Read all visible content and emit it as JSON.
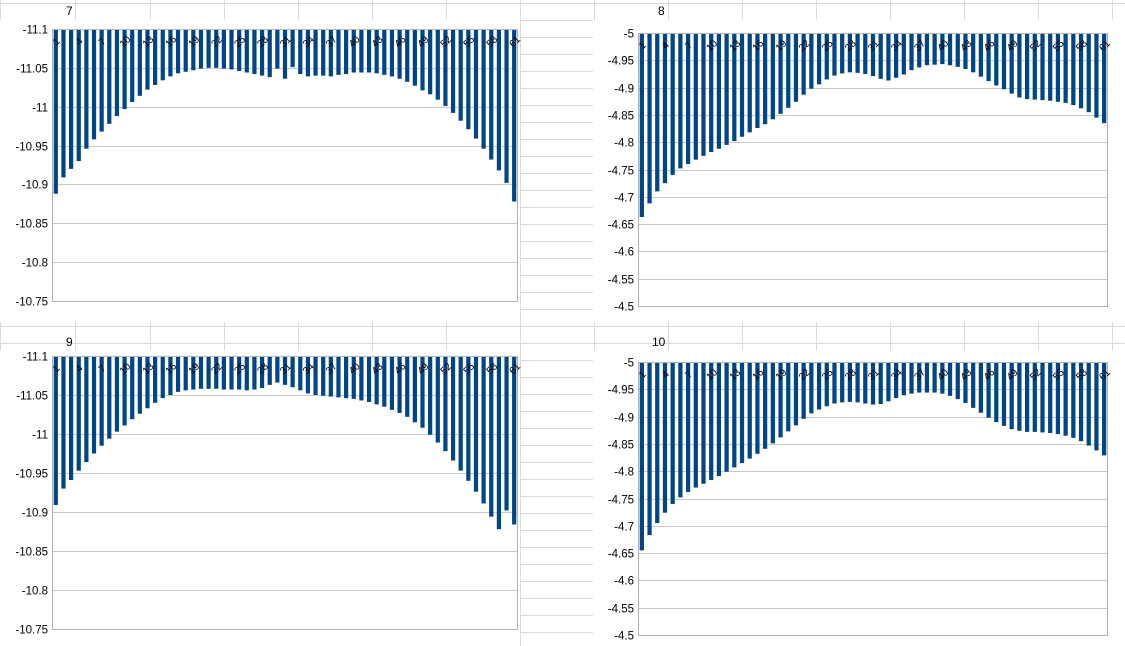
{
  "sheet": {
    "cells": [
      "7",
      "8",
      "9",
      "10"
    ]
  },
  "chart_data": [
    {
      "type": "bar",
      "title": "",
      "xlabel": "",
      "ylabel": "",
      "ylim": [
        -11.1,
        -10.75
      ],
      "yticks": [
        "-10.75",
        "-10.8",
        "-10.85",
        "-10.9",
        "-10.95",
        "-11",
        "-11.05",
        "-11.1"
      ],
      "grid": true,
      "legend": "none",
      "bar_color": "#004586",
      "categories_label_step": 3,
      "values": [
        -10.888,
        -10.909,
        -10.92,
        -10.93,
        -10.946,
        -10.958,
        -10.968,
        -10.978,
        -10.988,
        -10.997,
        -11.006,
        -11.014,
        -11.022,
        -11.028,
        -11.034,
        -11.039,
        -11.043,
        -11.045,
        -11.047,
        -11.049,
        -11.05,
        -11.05,
        -11.049,
        -11.048,
        -11.046,
        -11.044,
        -11.042,
        -11.04,
        -11.038,
        -11.049,
        -11.036,
        -11.051,
        -11.042,
        -11.039,
        -11.04,
        -11.04,
        -11.039,
        -11.041,
        -11.042,
        -11.044,
        -11.044,
        -11.044,
        -11.043,
        -11.041,
        -11.039,
        -11.036,
        -11.032,
        -11.027,
        -11.021,
        -11.016,
        -11.009,
        -11.001,
        -10.992,
        -10.982,
        -10.971,
        -10.959,
        -10.946,
        -10.932,
        -10.918,
        -10.902,
        -10.878
      ]
    },
    {
      "type": "bar",
      "title": "",
      "xlabel": "",
      "ylabel": "",
      "ylim": [
        -5,
        -4.5
      ],
      "yticks": [
        "-4.5",
        "-4.55",
        "-4.6",
        "-4.65",
        "-4.7",
        "-4.75",
        "-4.8",
        "-4.85",
        "-4.9",
        "-4.95",
        "-5"
      ],
      "grid": true,
      "legend": "none",
      "bar_color": "#004586",
      "categories_label_step": 3,
      "values": [
        -4.663,
        -4.688,
        -4.71,
        -4.725,
        -4.74,
        -4.752,
        -4.76,
        -4.768,
        -4.775,
        -4.782,
        -4.788,
        -4.795,
        -4.802,
        -4.81,
        -4.818,
        -4.826,
        -4.833,
        -4.842,
        -4.852,
        -4.863,
        -4.874,
        -4.887,
        -4.898,
        -4.906,
        -4.915,
        -4.922,
        -4.926,
        -4.928,
        -4.927,
        -4.925,
        -4.921,
        -4.916,
        -4.913,
        -4.918,
        -4.924,
        -4.932,
        -4.937,
        -4.941,
        -4.942,
        -4.943,
        -4.941,
        -4.938,
        -4.934,
        -4.928,
        -4.92,
        -4.912,
        -4.904,
        -4.897,
        -4.889,
        -4.882,
        -4.879,
        -4.878,
        -4.877,
        -4.876,
        -4.874,
        -4.872,
        -4.868,
        -4.862,
        -4.855,
        -4.845,
        -4.835
      ]
    },
    {
      "type": "bar",
      "title": "",
      "xlabel": "",
      "ylabel": "",
      "ylim": [
        -11.1,
        -10.75
      ],
      "yticks": [
        "-10.75",
        "-10.8",
        "-10.85",
        "-10.9",
        "-10.95",
        "-11",
        "-11.05",
        "-11.1"
      ],
      "grid": true,
      "legend": "none",
      "bar_color": "#004586",
      "categories_label_step": 3,
      "values": [
        -10.909,
        -10.93,
        -10.941,
        -10.953,
        -10.964,
        -10.975,
        -10.985,
        -10.994,
        -11.003,
        -11.011,
        -11.019,
        -11.026,
        -11.033,
        -11.04,
        -11.046,
        -11.05,
        -11.054,
        -11.056,
        -11.057,
        -11.058,
        -11.058,
        -11.058,
        -11.057,
        -11.057,
        -11.057,
        -11.056,
        -11.057,
        -11.059,
        -11.063,
        -11.066,
        -11.063,
        -11.06,
        -11.056,
        -11.052,
        -11.05,
        -11.049,
        -11.048,
        -11.047,
        -11.046,
        -11.045,
        -11.043,
        -11.041,
        -11.038,
        -11.035,
        -11.031,
        -11.027,
        -11.022,
        -11.015,
        -11.008,
        -10.999,
        -10.989,
        -10.978,
        -10.966,
        -10.953,
        -10.94,
        -10.926,
        -10.911,
        -10.894,
        -10.878,
        -10.902,
        -10.884
      ]
    },
    {
      "type": "bar",
      "title": "",
      "xlabel": "",
      "ylabel": "",
      "ylim": [
        -5,
        -4.5
      ],
      "yticks": [
        "-4.5",
        "-4.55",
        "-4.6",
        "-4.65",
        "-4.7",
        "-4.75",
        "-4.8",
        "-4.85",
        "-4.9",
        "-4.95",
        "-5"
      ],
      "grid": true,
      "legend": "none",
      "bar_color": "#004586",
      "categories_label_step": 3,
      "values": [
        -4.655,
        -4.683,
        -4.705,
        -4.724,
        -4.74,
        -4.752,
        -4.762,
        -4.77,
        -4.777,
        -4.784,
        -4.791,
        -4.799,
        -4.807,
        -4.815,
        -4.823,
        -4.832,
        -4.841,
        -4.851,
        -4.862,
        -4.873,
        -4.884,
        -4.896,
        -4.906,
        -4.913,
        -4.919,
        -4.924,
        -4.926,
        -4.927,
        -4.926,
        -4.924,
        -4.922,
        -4.923,
        -4.928,
        -4.934,
        -4.939,
        -4.942,
        -4.944,
        -4.944,
        -4.944,
        -4.942,
        -4.938,
        -4.932,
        -4.925,
        -4.916,
        -4.907,
        -4.898,
        -4.89,
        -4.883,
        -4.877,
        -4.874,
        -4.872,
        -4.872,
        -4.871,
        -4.87,
        -4.868,
        -4.865,
        -4.861,
        -4.855,
        -4.847,
        -4.838,
        -4.829
      ]
    }
  ]
}
